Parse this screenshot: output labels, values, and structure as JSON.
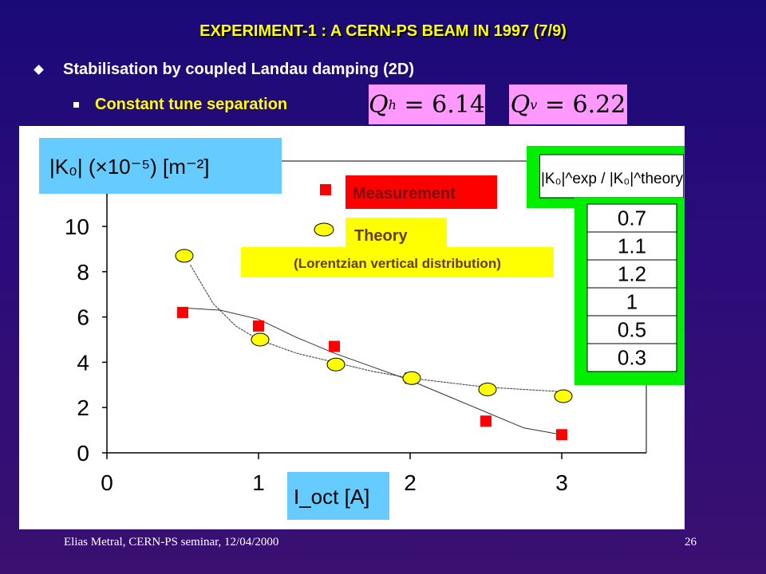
{
  "title": "EXPERIMENT-1 : A CERN-PS BEAM IN 1997 (7/9)",
  "bullet1": "Stabilisation by coupled Landau damping (2D)",
  "bullet2": "Constant tune separation",
  "formulas": {
    "qh_symbol": "Q",
    "qh_sub": "h",
    "qh_value": "= 6.14",
    "qv_symbol": "Q",
    "qv_sub": "v",
    "qv_value": "= 6.22",
    "ylabel": "|K₀| (×10⁻⁵) [m⁻²]",
    "xlabel": "I_oct [A]",
    "ratio_header": "|K₀|^exp / |K₀|^theory"
  },
  "legend": {
    "measurement": "Measurement",
    "theory": "Theory",
    "theory_note": "(Lorentzian vertical distribution)"
  },
  "ratio_table": [
    "0.7",
    "1.1",
    "1.2",
    "1",
    "0.5",
    "0.3"
  ],
  "footer": {
    "left": "Elias Metral, CERN-PS seminar, 12/04/2000",
    "right": "26"
  },
  "colors": {
    "measurement": "#ff0000",
    "theory": "#ffff00",
    "formula_box": "#66ccff",
    "table_border": "#00ee00",
    "q_box": "#ff99ff"
  },
  "chart_data": {
    "type": "scatter",
    "xlabel": "I_oct [A]",
    "ylabel": "|K₀| (×10⁻⁵) [m⁻²]",
    "xlim": [
      0,
      3.5
    ],
    "ylim": [
      0,
      12
    ],
    "x_ticks": [
      0,
      1,
      2,
      3
    ],
    "y_ticks": [
      0,
      2,
      4,
      6,
      8,
      10
    ],
    "grid": false,
    "series": [
      {
        "name": "Measurement",
        "marker": "square",
        "x": [
          0.5,
          1.0,
          1.5,
          2.0,
          2.5,
          3.0
        ],
        "y": [
          6.2,
          5.6,
          4.7,
          3.3,
          1.4,
          0.8
        ]
      },
      {
        "name": "Theory",
        "marker": "circle",
        "x": [
          0.5,
          1.0,
          1.5,
          2.0,
          2.5,
          3.0
        ],
        "y": [
          8.7,
          5.0,
          3.9,
          3.3,
          2.8,
          2.5
        ]
      }
    ],
    "fit_lines": [
      {
        "of": "Measurement",
        "x": [
          0.5,
          0.75,
          1.0,
          1.25,
          1.5,
          1.75,
          2.0,
          2.25,
          2.5,
          2.75,
          3.0
        ],
        "y": [
          6.4,
          6.3,
          5.9,
          5.1,
          4.4,
          3.8,
          3.2,
          2.5,
          1.8,
          1.1,
          0.8
        ]
      },
      {
        "of": "Theory",
        "x": [
          0.55,
          0.7,
          0.85,
          1.0,
          1.25,
          1.5,
          1.75,
          2.0,
          2.5,
          3.0
        ],
        "y": [
          8.3,
          6.6,
          5.6,
          5.0,
          4.4,
          4.0,
          3.6,
          3.3,
          2.9,
          2.7
        ]
      }
    ]
  }
}
